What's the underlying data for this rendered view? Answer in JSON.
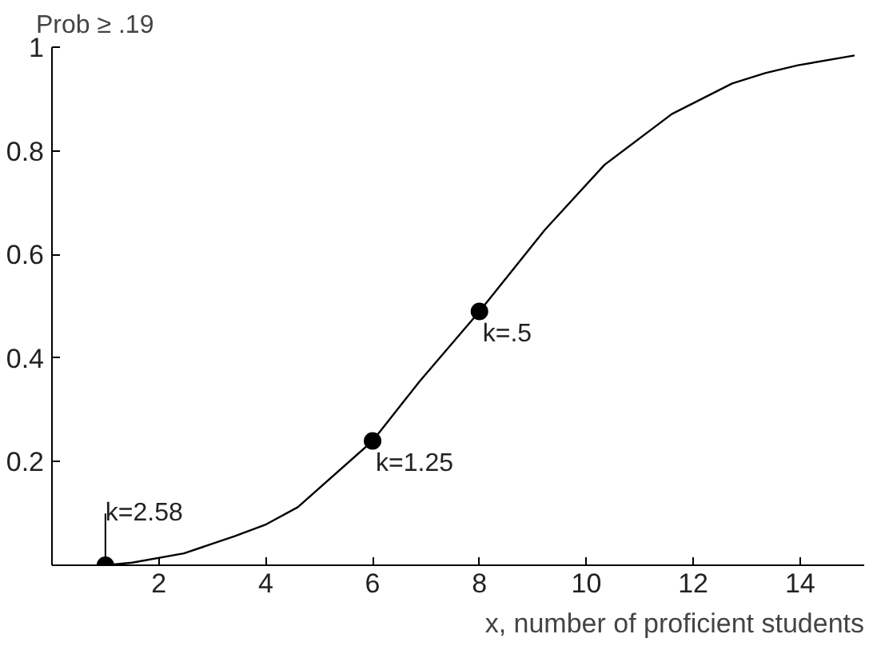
{
  "chart_data": {
    "type": "line",
    "ylabel": "Prob ≥ .19",
    "xlabel": "x, number of proficient students",
    "xlim": [
      0,
      15.2
    ],
    "ylim": [
      0,
      1
    ],
    "xticks": [
      2,
      4,
      6,
      8,
      10,
      12,
      14
    ],
    "yticks": [
      0.2,
      0.4,
      0.6,
      0.8,
      1
    ],
    "grid": false,
    "series": [
      {
        "color": "#000000",
        "marker": "none",
        "x": [
          1,
          1.5,
          2.47,
          3.42,
          4.01,
          4.6,
          6,
          6.88,
          8,
          9.22,
          10.34,
          11.6,
          12.73,
          13.35,
          13.96,
          15.02
        ],
        "values": [
          0,
          0.005,
          0.023,
          0.056,
          0.079,
          0.112,
          0.24,
          0.355,
          0.49,
          0.647,
          0.773,
          0.871,
          0.93,
          0.95,
          0.965,
          0.984
        ]
      },
      {
        "type": "scatter",
        "color": "#000000",
        "marker": "circle",
        "x": [
          1,
          6,
          8
        ],
        "values": [
          0,
          0.24,
          0.49
        ]
      }
    ],
    "annotations": [
      {
        "text": "k=2.58",
        "x": 1,
        "y": 0
      },
      {
        "text": "k=1.25",
        "x": 6,
        "y": 0.24
      },
      {
        "text": "k=.5",
        "x": 8,
        "y": 0.49
      }
    ]
  }
}
